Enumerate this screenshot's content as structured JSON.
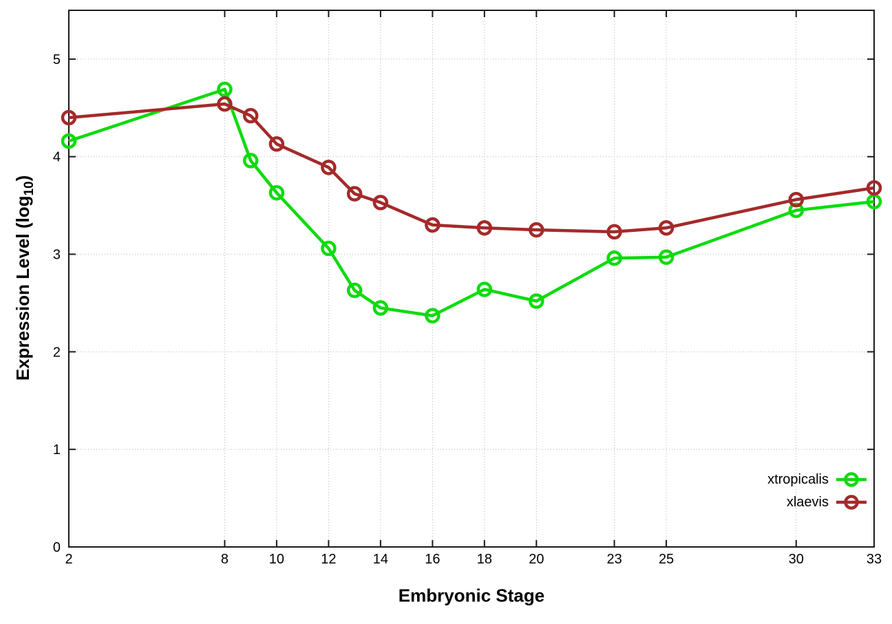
{
  "chart_data": {
    "type": "line",
    "x": [
      2,
      8,
      9,
      10,
      12,
      13,
      14,
      16,
      18,
      20,
      23,
      25,
      30,
      33
    ],
    "series": [
      {
        "name": "xtropicalis",
        "color": "#0ddb0d",
        "values": [
          4.16,
          4.69,
          3.96,
          3.63,
          3.06,
          2.63,
          2.45,
          2.37,
          2.64,
          2.52,
          2.96,
          2.97,
          3.45,
          3.54
        ]
      },
      {
        "name": "xlaevis",
        "color": "#a42a2a",
        "values": [
          4.4,
          4.54,
          4.42,
          4.13,
          3.89,
          3.62,
          3.53,
          3.3,
          3.27,
          3.25,
          3.23,
          3.27,
          3.56,
          3.68
        ]
      }
    ],
    "xlabel": "Embryonic Stage",
    "ylabel_prefix": "Expression Level (log",
    "ylabel_sub": "10",
    "ylabel_suffix": ")",
    "x_ticks": [
      2,
      8,
      10,
      12,
      14,
      16,
      18,
      20,
      23,
      25,
      30,
      33
    ],
    "y_ticks": [
      0,
      1,
      2,
      3,
      4,
      5
    ],
    "xlim": [
      2,
      33
    ],
    "ylim": [
      0,
      5.5
    ],
    "grid": true,
    "legend_position": "inside-bottom-right",
    "grid_color": "#b4b4b4",
    "axis_color": "#1a1a1a",
    "background_color": "#ffffff"
  }
}
